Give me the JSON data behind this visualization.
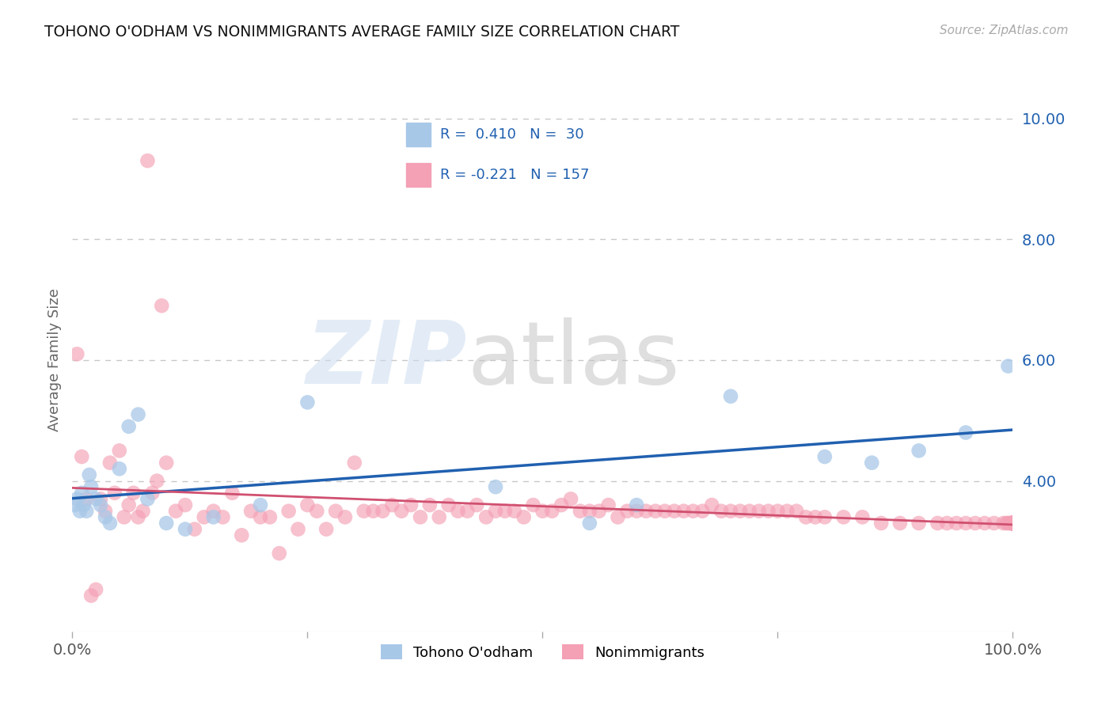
{
  "title": "TOHONO O'ODHAM VS NONIMMIGRANTS AVERAGE FAMILY SIZE CORRELATION CHART",
  "source": "Source: ZipAtlas.com",
  "ylabel": "Average Family Size",
  "xlim": [
    0,
    100
  ],
  "ylim": [
    1.5,
    10.5
  ],
  "color_blue": "#a8c8e8",
  "color_pink": "#f4a0b5",
  "color_blue_line": "#2060b0",
  "color_pink_line": "#d05070",
  "color_legend_text": "#2060b0",
  "grid_color": "#c8c8c8",
  "tohono_x": [
    0.3,
    0.5,
    0.8,
    1.0,
    1.2,
    1.5,
    1.8,
    2.0,
    2.5,
    3.0,
    3.5,
    4.0,
    5.0,
    6.0,
    7.0,
    8.0,
    10.0,
    12.0,
    15.0,
    20.0,
    25.0,
    45.0,
    55.0,
    60.0,
    70.0,
    80.0,
    85.0,
    90.0,
    95.0,
    99.5
  ],
  "tohono_y": [
    3.6,
    3.7,
    3.5,
    3.8,
    3.6,
    3.5,
    4.1,
    3.9,
    3.7,
    3.6,
    3.4,
    3.3,
    4.2,
    4.9,
    5.1,
    3.7,
    3.3,
    3.2,
    3.4,
    3.6,
    5.3,
    3.9,
    3.3,
    3.6,
    5.4,
    4.4,
    4.3,
    4.5,
    4.8,
    5.9
  ],
  "nonimm_x": [
    0.5,
    1.0,
    1.5,
    2.0,
    2.5,
    3.0,
    3.5,
    4.0,
    4.5,
    5.0,
    5.5,
    6.0,
    6.5,
    7.0,
    7.5,
    8.0,
    8.5,
    9.0,
    9.5,
    10.0,
    11.0,
    12.0,
    13.0,
    14.0,
    15.0,
    16.0,
    17.0,
    18.0,
    19.0,
    20.0,
    21.0,
    22.0,
    23.0,
    24.0,
    25.0,
    26.0,
    27.0,
    28.0,
    29.0,
    30.0,
    31.0,
    32.0,
    33.0,
    34.0,
    35.0,
    36.0,
    37.0,
    38.0,
    39.0,
    40.0,
    41.0,
    42.0,
    43.0,
    44.0,
    45.0,
    46.0,
    47.0,
    48.0,
    49.0,
    50.0,
    51.0,
    52.0,
    53.0,
    54.0,
    55.0,
    56.0,
    57.0,
    58.0,
    59.0,
    60.0,
    61.0,
    62.0,
    63.0,
    64.0,
    65.0,
    66.0,
    67.0,
    68.0,
    69.0,
    70.0,
    71.0,
    72.0,
    73.0,
    74.0,
    75.0,
    76.0,
    77.0,
    78.0,
    79.0,
    80.0,
    82.0,
    84.0,
    86.0,
    88.0,
    90.0,
    92.0,
    93.0,
    94.0,
    95.0,
    96.0,
    97.0,
    98.0,
    99.0,
    99.3,
    99.5,
    99.7,
    99.8,
    99.9,
    100.0,
    100.0,
    100.0,
    100.0,
    100.0,
    100.0,
    100.0,
    100.0,
    100.0,
    100.0,
    100.0,
    100.0,
    100.0,
    100.0,
    100.0,
    100.0,
    100.0,
    100.0,
    100.0,
    100.0,
    100.0,
    100.0,
    100.0,
    100.0,
    100.0,
    100.0,
    100.0,
    100.0,
    100.0,
    100.0,
    100.0,
    100.0,
    100.0,
    100.0,
    100.0,
    100.0,
    100.0,
    100.0,
    100.0,
    100.0,
    100.0,
    100.0,
    100.0,
    100.0,
    100.0
  ],
  "nonimm_y": [
    6.1,
    4.4,
    3.7,
    2.1,
    2.2,
    3.7,
    3.5,
    4.3,
    3.8,
    4.5,
    3.4,
    3.6,
    3.8,
    3.4,
    3.5,
    9.3,
    3.8,
    4.0,
    6.9,
    4.3,
    3.5,
    3.6,
    3.2,
    3.4,
    3.5,
    3.4,
    3.8,
    3.1,
    3.5,
    3.4,
    3.4,
    2.8,
    3.5,
    3.2,
    3.6,
    3.5,
    3.2,
    3.5,
    3.4,
    4.3,
    3.5,
    3.5,
    3.5,
    3.6,
    3.5,
    3.6,
    3.4,
    3.6,
    3.4,
    3.6,
    3.5,
    3.5,
    3.6,
    3.4,
    3.5,
    3.5,
    3.5,
    3.4,
    3.6,
    3.5,
    3.5,
    3.6,
    3.7,
    3.5,
    3.5,
    3.5,
    3.6,
    3.4,
    3.5,
    3.5,
    3.5,
    3.5,
    3.5,
    3.5,
    3.5,
    3.5,
    3.5,
    3.6,
    3.5,
    3.5,
    3.5,
    3.5,
    3.5,
    3.5,
    3.5,
    3.5,
    3.5,
    3.4,
    3.4,
    3.4,
    3.4,
    3.4,
    3.3,
    3.3,
    3.3,
    3.3,
    3.3,
    3.3,
    3.3,
    3.3,
    3.3,
    3.3,
    3.3,
    3.3,
    3.3,
    3.3,
    3.3,
    3.3,
    3.3,
    3.3,
    3.3,
    3.3,
    3.3,
    3.3,
    3.3,
    3.3,
    3.3,
    3.3,
    3.3,
    3.3,
    3.3,
    3.3,
    3.3,
    3.3,
    3.3,
    3.3,
    3.3,
    3.3,
    3.3,
    3.3,
    3.3,
    3.3,
    3.3,
    3.3,
    3.3,
    3.3,
    3.3,
    3.3,
    3.3,
    3.3,
    3.3,
    3.3,
    3.3,
    3.3,
    3.3,
    3.3,
    3.3,
    3.3,
    3.3,
    3.3,
    3.3,
    3.3,
    3.3
  ]
}
